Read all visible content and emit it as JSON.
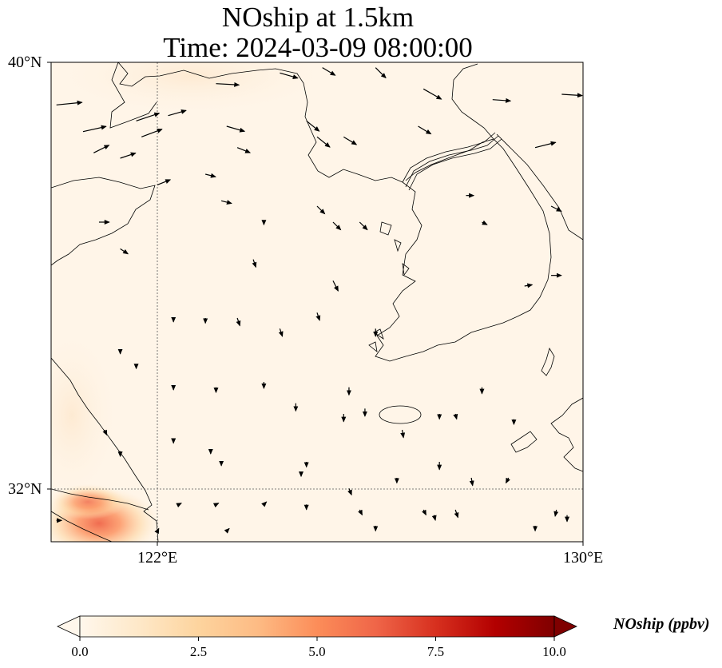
{
  "title": {
    "line1": "NOship at 1.5km",
    "line2": "Time: 2024-03-09 08:00:00"
  },
  "axes": {
    "lat_labels": [
      "40°N",
      "32°N"
    ],
    "lon_labels": [
      "122°E",
      "130°E"
    ],
    "lat_range": [
      31,
      40
    ],
    "lon_range": [
      120,
      130
    ],
    "gridlines": {
      "lons": [
        122
      ],
      "lats": [
        32
      ],
      "style": "dotted"
    }
  },
  "colorbar": {
    "label": "NOship (ppbv)",
    "ticks": [
      "0.0",
      "2.5",
      "5.0",
      "7.5",
      "10.0"
    ],
    "range": [
      0,
      10
    ],
    "colormap": "OrRd",
    "extend": "both",
    "colors": [
      "#fff7ec",
      "#fee8c8",
      "#fdd49e",
      "#fdbb84",
      "#fc8d59",
      "#ef6548",
      "#d7301f",
      "#b30000",
      "#7f0000"
    ]
  },
  "field": {
    "background_color": "#fff5e8",
    "hotspot_region": "southwest corner near Shanghai / Yangtze estuary",
    "hotspot_max_ppbv": 4.5
  },
  "wind_vectors": [
    {
      "lon": 120.1,
      "lat": 39.2,
      "u": 1.0,
      "v": 0.1
    },
    {
      "lon": 120.6,
      "lat": 38.7,
      "u": 0.9,
      "v": 0.2
    },
    {
      "lon": 120.8,
      "lat": 38.3,
      "u": 0.6,
      "v": 0.3
    },
    {
      "lon": 121.6,
      "lat": 38.9,
      "u": 0.9,
      "v": 0.3
    },
    {
      "lon": 121.7,
      "lat": 38.6,
      "u": 0.8,
      "v": 0.3
    },
    {
      "lon": 121.3,
      "lat": 38.2,
      "u": 0.6,
      "v": 0.2
    },
    {
      "lon": 123.1,
      "lat": 39.6,
      "u": 0.9,
      "v": -0.05
    },
    {
      "lon": 124.3,
      "lat": 39.8,
      "u": 0.7,
      "v": -0.2
    },
    {
      "lon": 125.1,
      "lat": 39.9,
      "u": 0.5,
      "v": -0.3
    },
    {
      "lon": 126.1,
      "lat": 39.9,
      "u": 0.4,
      "v": -0.4
    },
    {
      "lon": 127.0,
      "lat": 39.5,
      "u": 0.7,
      "v": -0.4
    },
    {
      "lon": 128.3,
      "lat": 39.3,
      "u": 0.7,
      "v": -0.05
    },
    {
      "lon": 129.6,
      "lat": 39.4,
      "u": 0.8,
      "v": -0.05
    },
    {
      "lon": 122.2,
      "lat": 39.0,
      "u": 0.7,
      "v": 0.2
    },
    {
      "lon": 123.3,
      "lat": 38.8,
      "u": 0.7,
      "v": -0.2
    },
    {
      "lon": 123.5,
      "lat": 38.4,
      "u": 0.5,
      "v": -0.2
    },
    {
      "lon": 124.8,
      "lat": 38.9,
      "u": 0.5,
      "v": -0.4
    },
    {
      "lon": 125.0,
      "lat": 38.6,
      "u": 0.5,
      "v": -0.4
    },
    {
      "lon": 125.5,
      "lat": 38.6,
      "u": 0.5,
      "v": -0.3
    },
    {
      "lon": 126.9,
      "lat": 38.8,
      "u": 0.5,
      "v": -0.3
    },
    {
      "lon": 129.1,
      "lat": 38.4,
      "u": 0.8,
      "v": 0.2
    },
    {
      "lon": 129.4,
      "lat": 37.3,
      "u": 0.4,
      "v": -0.2
    },
    {
      "lon": 122.0,
      "lat": 37.7,
      "u": 0.5,
      "v": 0.2
    },
    {
      "lon": 122.9,
      "lat": 37.9,
      "u": 0.4,
      "v": -0.1
    },
    {
      "lon": 123.2,
      "lat": 37.4,
      "u": 0.4,
      "v": -0.1
    },
    {
      "lon": 124.0,
      "lat": 37.0,
      "u": 0.0,
      "v": -0.1
    },
    {
      "lon": 125.0,
      "lat": 37.3,
      "u": 0.3,
      "v": -0.3
    },
    {
      "lon": 125.3,
      "lat": 37.0,
      "u": 0.3,
      "v": -0.3
    },
    {
      "lon": 125.8,
      "lat": 37.0,
      "u": 0.3,
      "v": -0.3
    },
    {
      "lon": 127.8,
      "lat": 37.5,
      "u": 0.3,
      "v": 0.0
    },
    {
      "lon": 128.1,
      "lat": 37.0,
      "u": 0.2,
      "v": -0.1
    },
    {
      "lon": 129.4,
      "lat": 36.0,
      "u": 0.4,
      "v": 0.0
    },
    {
      "lon": 128.9,
      "lat": 35.8,
      "u": 0.3,
      "v": 0.05
    },
    {
      "lon": 120.9,
      "lat": 37.0,
      "u": 0.4,
      "v": 0.0
    },
    {
      "lon": 121.3,
      "lat": 36.5,
      "u": 0.3,
      "v": -0.2
    },
    {
      "lon": 123.8,
      "lat": 36.3,
      "u": 0.1,
      "v": -0.3
    },
    {
      "lon": 125.3,
      "lat": 35.9,
      "u": 0.2,
      "v": -0.4
    },
    {
      "lon": 125.0,
      "lat": 35.3,
      "u": 0.1,
      "v": -0.3
    },
    {
      "lon": 126.1,
      "lat": 35.0,
      "u": 0.0,
      "v": -0.3
    },
    {
      "lon": 122.3,
      "lat": 35.2,
      "u": 0.0,
      "v": -0.15
    },
    {
      "lon": 122.9,
      "lat": 35.2,
      "u": 0.0,
      "v": -0.2
    },
    {
      "lon": 123.5,
      "lat": 35.2,
      "u": 0.1,
      "v": -0.3
    },
    {
      "lon": 124.3,
      "lat": 35.0,
      "u": 0.1,
      "v": -0.3
    },
    {
      "lon": 121.3,
      "lat": 34.6,
      "u": 0.0,
      "v": -0.15
    },
    {
      "lon": 121.6,
      "lat": 34.3,
      "u": 0.0,
      "v": -0.1
    },
    {
      "lon": 122.3,
      "lat": 33.9,
      "u": 0.0,
      "v": -0.1
    },
    {
      "lon": 123.1,
      "lat": 33.9,
      "u": 0.0,
      "v": -0.2
    },
    {
      "lon": 124.0,
      "lat": 34.0,
      "u": 0.0,
      "v": -0.25
    },
    {
      "lon": 125.6,
      "lat": 33.9,
      "u": 0.0,
      "v": -0.3
    },
    {
      "lon": 125.5,
      "lat": 33.4,
      "u": 0.0,
      "v": -0.3
    },
    {
      "lon": 124.6,
      "lat": 33.6,
      "u": 0.0,
      "v": -0.3
    },
    {
      "lon": 125.9,
      "lat": 33.5,
      "u": 0.0,
      "v": -0.3
    },
    {
      "lon": 126.6,
      "lat": 33.1,
      "u": 0.05,
      "v": -0.3
    },
    {
      "lon": 127.3,
      "lat": 33.4,
      "u": 0.0,
      "v": -0.2
    },
    {
      "lon": 127.6,
      "lat": 33.4,
      "u": 0.05,
      "v": -0.2
    },
    {
      "lon": 128.7,
      "lat": 33.3,
      "u": 0.0,
      "v": -0.2
    },
    {
      "lon": 128.1,
      "lat": 33.9,
      "u": 0.0,
      "v": -0.25
    },
    {
      "lon": 121.0,
      "lat": 33.1,
      "u": 0.1,
      "v": -0.2
    },
    {
      "lon": 121.3,
      "lat": 32.7,
      "u": 0.0,
      "v": -0.2
    },
    {
      "lon": 122.3,
      "lat": 32.9,
      "u": 0.0,
      "v": -0.1
    },
    {
      "lon": 123.0,
      "lat": 32.7,
      "u": 0.0,
      "v": -0.1
    },
    {
      "lon": 123.2,
      "lat": 32.5,
      "u": 0.0,
      "v": -0.15
    },
    {
      "lon": 124.8,
      "lat": 32.5,
      "u": 0.0,
      "v": -0.2
    },
    {
      "lon": 124.7,
      "lat": 32.3,
      "u": 0.0,
      "v": -0.15
    },
    {
      "lon": 125.6,
      "lat": 32.0,
      "u": 0.1,
      "v": -0.25
    },
    {
      "lon": 126.5,
      "lat": 32.2,
      "u": 0.0,
      "v": -0.2
    },
    {
      "lon": 127.3,
      "lat": 32.5,
      "u": 0.0,
      "v": -0.3
    },
    {
      "lon": 127.9,
      "lat": 32.2,
      "u": 0.05,
      "v": -0.3
    },
    {
      "lon": 128.6,
      "lat": 32.2,
      "u": -0.1,
      "v": -0.2
    },
    {
      "lon": 125.8,
      "lat": 31.6,
      "u": 0.1,
      "v": -0.2
    },
    {
      "lon": 124.8,
      "lat": 31.7,
      "u": 0.0,
      "v": -0.2
    },
    {
      "lon": 127.0,
      "lat": 31.6,
      "u": 0.1,
      "v": -0.2
    },
    {
      "lon": 127.2,
      "lat": 31.5,
      "u": 0.05,
      "v": -0.2
    },
    {
      "lon": 127.6,
      "lat": 31.6,
      "u": 0.1,
      "v": -0.3
    },
    {
      "lon": 126.1,
      "lat": 31.3,
      "u": 0.0,
      "v": -0.2
    },
    {
      "lon": 129.1,
      "lat": 31.3,
      "u": 0.0,
      "v": -0.2
    },
    {
      "lon": 129.5,
      "lat": 31.6,
      "u": -0.05,
      "v": -0.25
    },
    {
      "lon": 129.7,
      "lat": 31.5,
      "u": 0.0,
      "v": -0.25
    },
    {
      "lon": 122.4,
      "lat": 31.7,
      "u": 0.1,
      "v": 0.05
    },
    {
      "lon": 123.1,
      "lat": 31.7,
      "u": 0.1,
      "v": 0.05
    },
    {
      "lon": 124.0,
      "lat": 31.7,
      "u": 0.1,
      "v": 0.1
    },
    {
      "lon": 120.1,
      "lat": 31.4,
      "u": 0.2,
      "v": 0.0
    },
    {
      "lon": 123.3,
      "lat": 31.2,
      "u": 0.1,
      "v": 0.1
    },
    {
      "lon": 122.0,
      "lat": 31.2,
      "u": 0.05,
      "v": 0.1
    }
  ]
}
